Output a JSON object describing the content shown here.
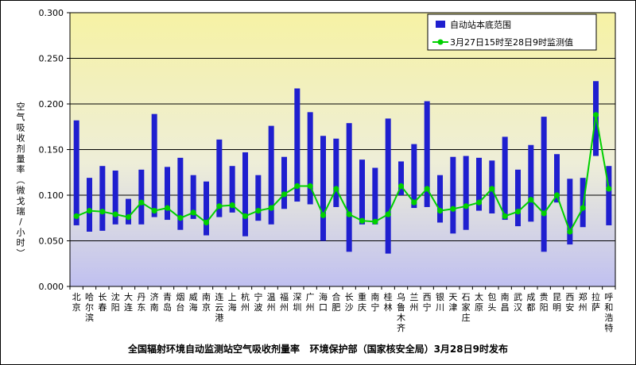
{
  "chart_data": {
    "type": "bar",
    "title": "全国辐射环境自动监测站空气吸收剂量率   环境保护部（国家核安全局）3月28日9时发布",
    "ylabel": "空气吸收剂量率（微戈瑞/小时）",
    "ylim": [
      0,
      0.3
    ],
    "yticks": [
      "0.000",
      "0.050",
      "0.100",
      "0.150",
      "0.200",
      "0.250",
      "0.300"
    ],
    "grid": true,
    "legend_position": "top-right",
    "colors": {
      "range_bar": "#1f1fcf",
      "measured_line": "#00d000",
      "grid": "#000000"
    },
    "categories": [
      "北京",
      "哈尔滨",
      "长春",
      "沈阳",
      "大连",
      "丹东",
      "济南",
      "青岛",
      "烟台",
      "威海",
      "南京",
      "连云港",
      "上海",
      "杭州",
      "宁波",
      "温州",
      "福州",
      "深圳",
      "广州",
      "海口",
      "合肥",
      "长沙",
      "重庆",
      "南宁",
      "桂林",
      "乌鲁木齐",
      "兰州",
      "西宁",
      "银川",
      "天津",
      "石家庄",
      "太原",
      "包头",
      "南昌",
      "武汉",
      "成都",
      "贵阳",
      "昆明",
      "西安",
      "郑州",
      "拉萨",
      "呼和浩特"
    ],
    "series": [
      {
        "name": "自动站本底范围",
        "kind": "range",
        "low": [
          0.067,
          0.06,
          0.061,
          0.068,
          0.068,
          0.068,
          0.076,
          0.073,
          0.062,
          0.074,
          0.056,
          0.076,
          0.081,
          0.055,
          0.072,
          0.068,
          0.085,
          0.093,
          0.09,
          0.05,
          0.087,
          0.038,
          0.068,
          0.068,
          0.036,
          0.1,
          0.086,
          0.087,
          0.07,
          0.058,
          0.062,
          0.083,
          0.08,
          0.073,
          0.066,
          0.071,
          0.038,
          0.092,
          0.046,
          0.065,
          0.143,
          0.067
        ],
        "high": [
          0.182,
          0.119,
          0.132,
          0.127,
          0.096,
          0.128,
          0.189,
          0.131,
          0.141,
          0.122,
          0.115,
          0.161,
          0.132,
          0.147,
          0.122,
          0.176,
          0.142,
          0.217,
          0.191,
          0.165,
          0.162,
          0.179,
          0.139,
          0.13,
          0.184,
          0.137,
          0.156,
          0.203,
          0.122,
          0.142,
          0.143,
          0.141,
          0.138,
          0.164,
          0.128,
          0.155,
          0.186,
          0.145,
          0.118,
          0.119,
          0.225,
          0.132
        ]
      },
      {
        "name": "3月27日15时至28日9时监测值",
        "kind": "line",
        "values": [
          0.077,
          0.083,
          0.082,
          0.079,
          0.076,
          0.092,
          0.083,
          0.086,
          0.075,
          0.081,
          0.07,
          0.088,
          0.089,
          0.077,
          0.083,
          0.086,
          0.101,
          0.11,
          0.11,
          0.078,
          0.107,
          0.079,
          0.072,
          0.071,
          0.079,
          0.11,
          0.092,
          0.107,
          0.083,
          0.085,
          0.088,
          0.092,
          0.107,
          0.077,
          0.082,
          0.095,
          0.08,
          0.1,
          0.06,
          0.086,
          0.188,
          0.107
        ]
      }
    ]
  }
}
